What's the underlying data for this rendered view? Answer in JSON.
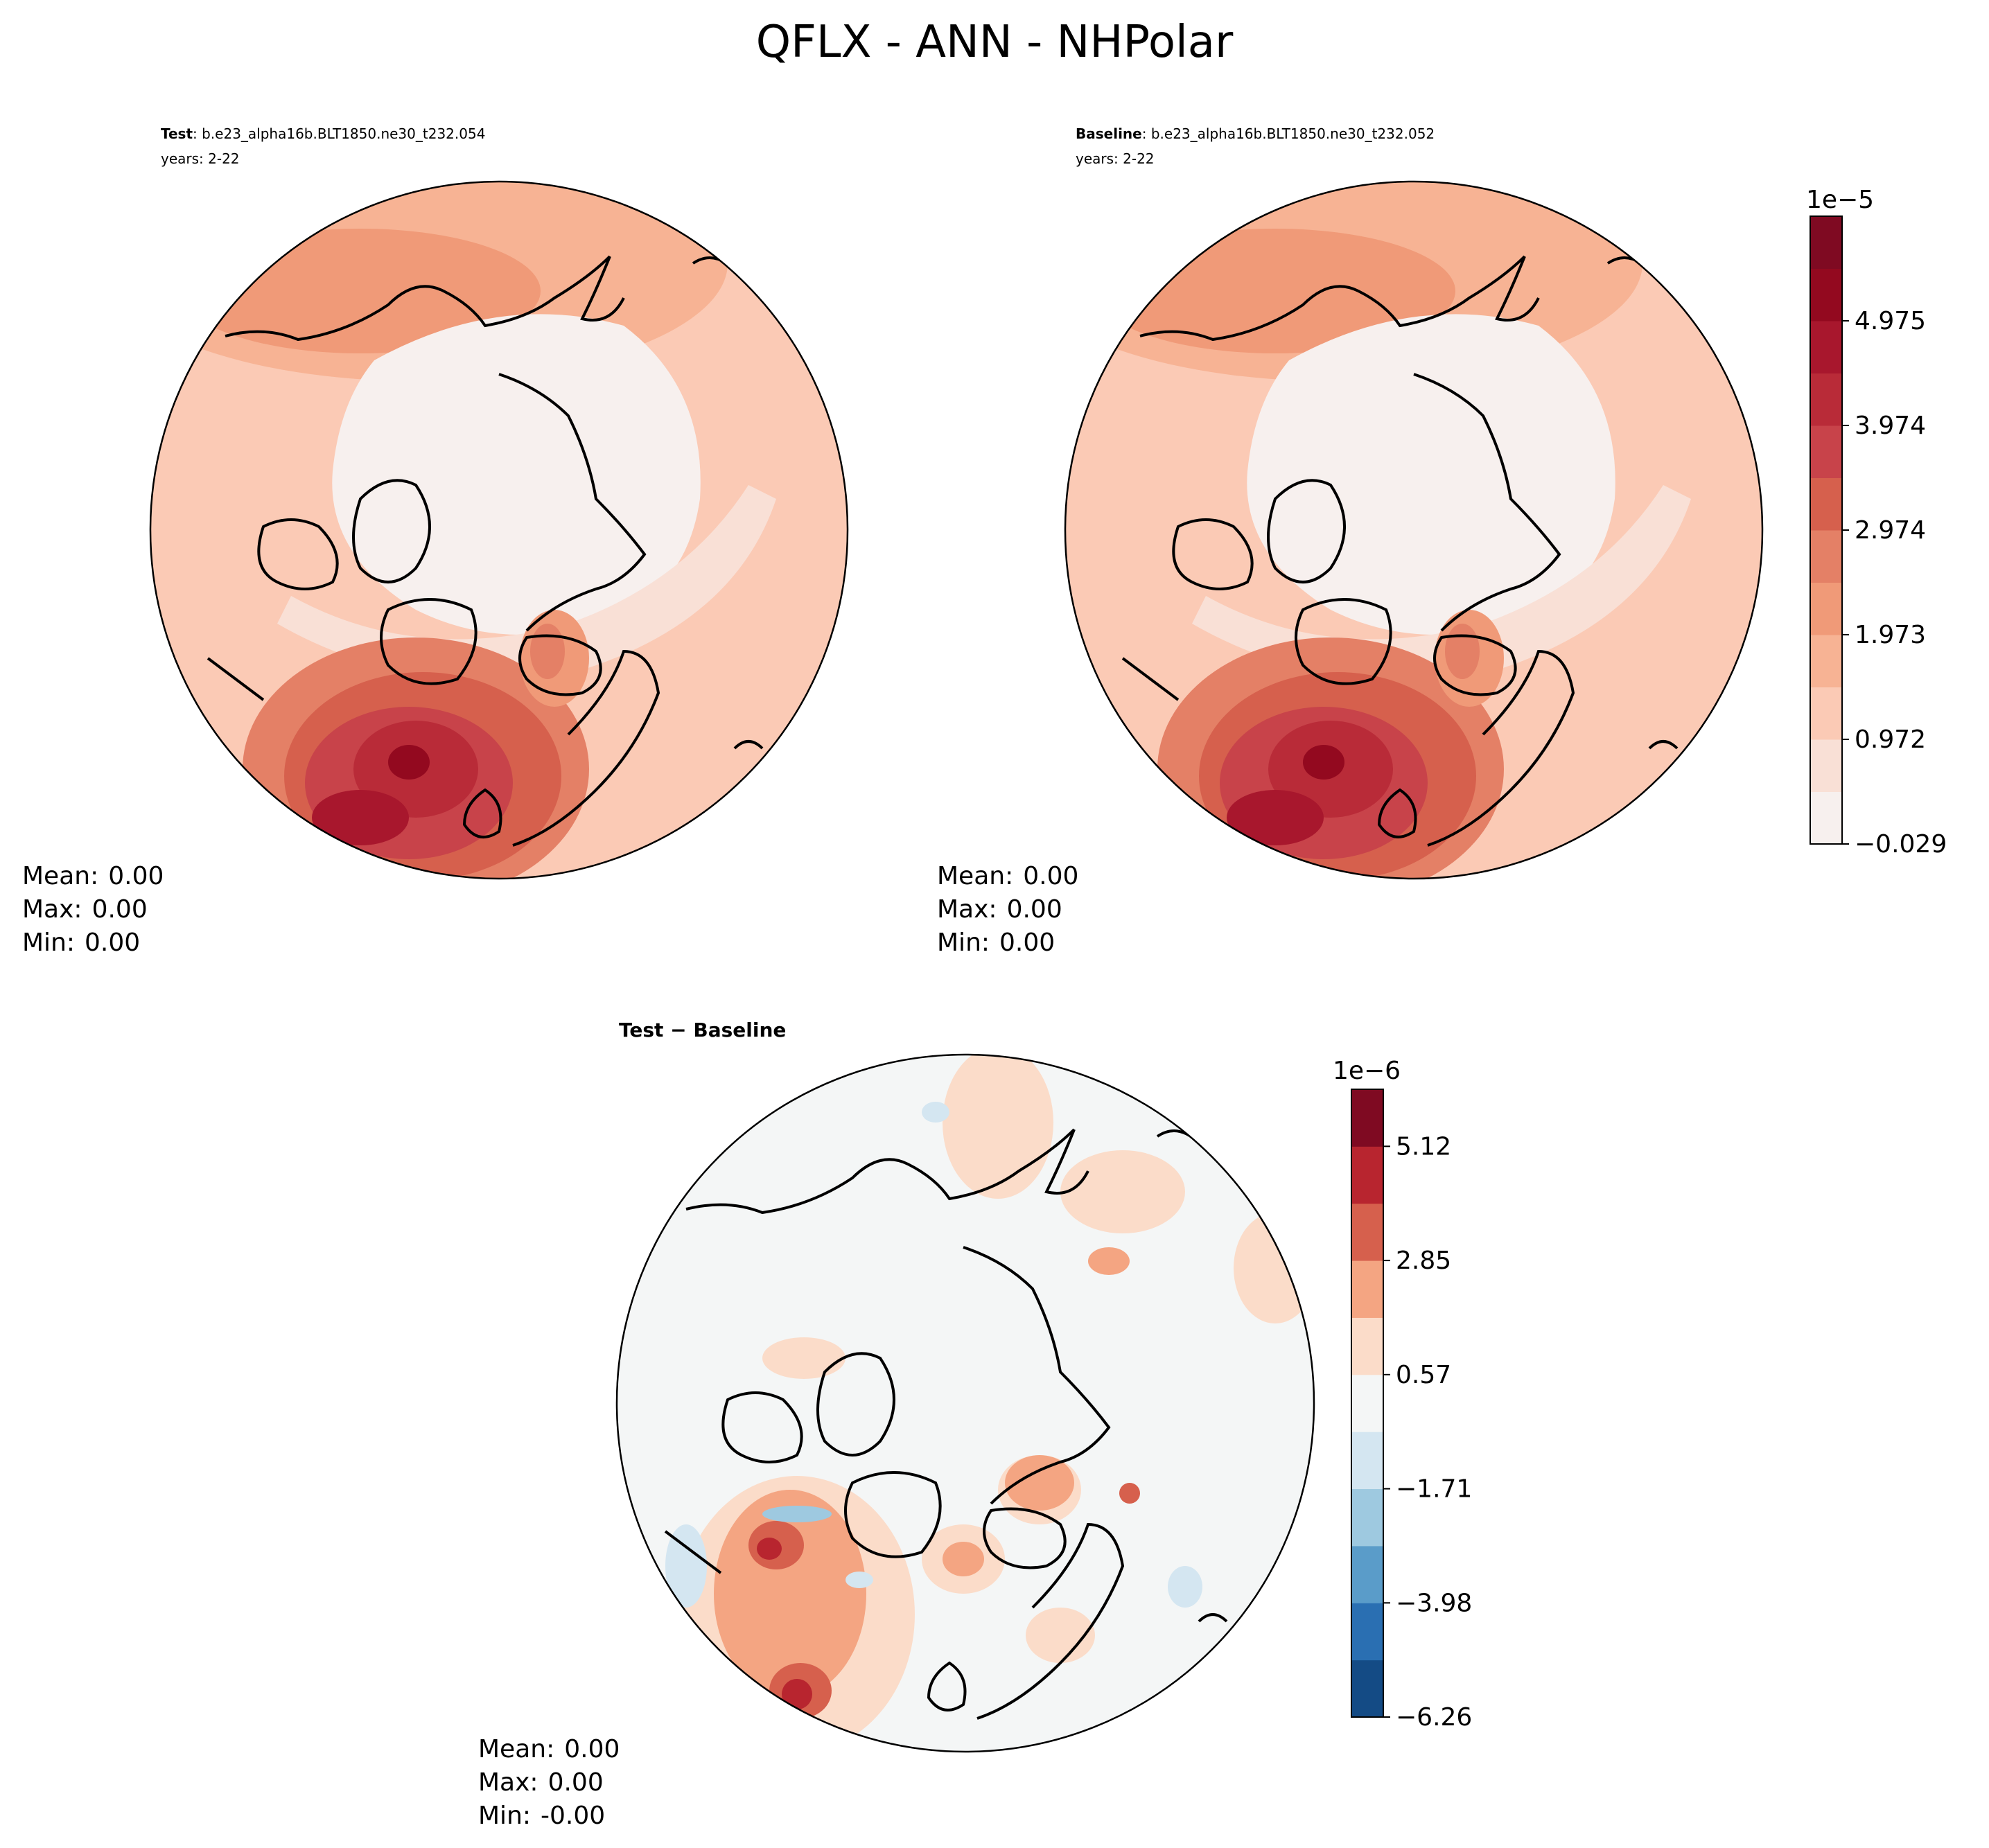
{
  "figure": {
    "title": "QFLX - ANN - NHPolar"
  },
  "chart_data": [
    {
      "type": "heatmap",
      "projection": "north-polar-stereographic",
      "title_bold": "Test",
      "title_rest": ": b.e23_alpha16b.BLT1850.ne30_t232.054",
      "subtitle": "years: 2-22",
      "stats": {
        "mean_label": "Mean:",
        "mean": "0.00",
        "max_label": "Max:",
        "max": "0.00",
        "min_label": "Min:",
        "min": "0.00"
      }
    },
    {
      "type": "heatmap",
      "projection": "north-polar-stereographic",
      "title_bold": "Baseline",
      "title_rest": ": b.e23_alpha16b.BLT1850.ne30_t232.052",
      "subtitle": "years: 2-22",
      "stats": {
        "mean_label": "Mean:",
        "mean": "0.00",
        "max_label": "Max:",
        "max": "0.00",
        "min_label": "Min:",
        "min": "0.00"
      }
    },
    {
      "type": "heatmap",
      "projection": "north-polar-stereographic",
      "title_bold": "Test − Baseline",
      "stats": {
        "mean_label": "Mean:",
        "mean": "0.00",
        "max_label": "Max:",
        "max": "0.00",
        "min_label": "Min:",
        "min": "-0.00"
      }
    }
  ],
  "colorbars": {
    "main": {
      "offset_label": "1e−5",
      "ticks": [
        "−0.029",
        "0.972",
        "1.973",
        "2.974",
        "3.974",
        "4.975"
      ],
      "levels": 13,
      "colors": [
        "#f7f0ee",
        "#f9e0d6",
        "#fbcab5",
        "#f7b394",
        "#f09a78",
        "#e48066",
        "#d6604d",
        "#c8434a",
        "#b92b38",
        "#a8172d",
        "#93091f",
        "#7f0a22"
      ]
    },
    "diff": {
      "offset_label": "1e−6",
      "ticks": [
        "−6.26",
        "−3.98",
        "−1.71",
        "0.57",
        "2.85",
        "5.12"
      ],
      "colors": [
        "#144b85",
        "#2a6fb2",
        "#5a9cc9",
        "#9ec9e0",
        "#d4e6f1",
        "#f4f6f6",
        "#fbdcc9",
        "#f4a582",
        "#d6604d",
        "#b8252f",
        "#7f0a22"
      ]
    }
  }
}
